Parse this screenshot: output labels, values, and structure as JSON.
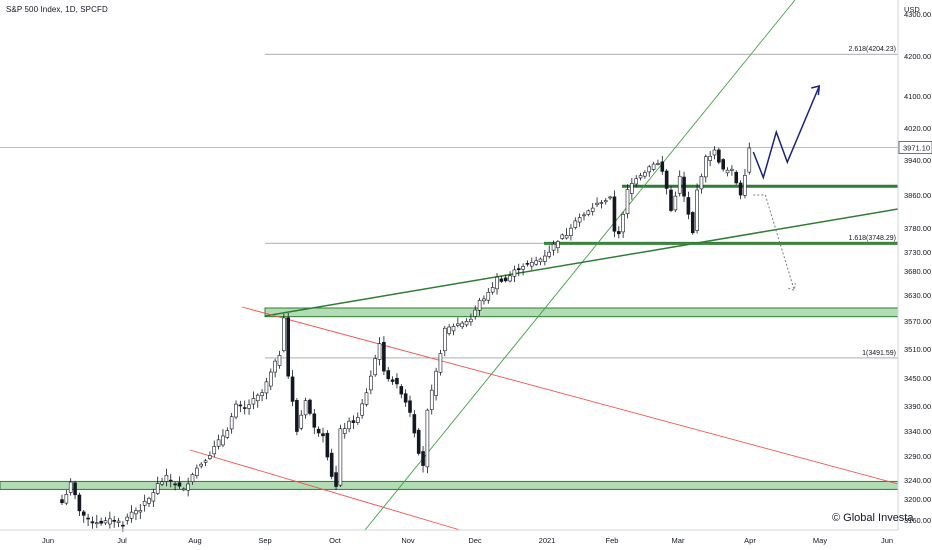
{
  "header": {
    "title": "S&P 500 Index, 1D, SPCFD",
    "currency": "USD"
  },
  "watermark": "© Global Investa",
  "chart_data": {
    "type": "candlestick",
    "y_ticks": [
      4300.0,
      4200.0,
      4100.0,
      4020.0,
      3940.0,
      3860.0,
      3780.0,
      3730.0,
      3680.0,
      3630.0,
      3570.0,
      3510.0,
      3450.0,
      3390.0,
      3340.0,
      3290.0,
      3240.0,
      3200.0,
      3160.0
    ],
    "y_tick_labels": [
      "4300.00",
      "4200.00",
      "4100.00",
      "4020.00",
      "3940.00",
      "3860.00",
      "3780.00",
      "3730.00",
      "3680.00",
      "3630.00",
      "3570.00",
      "3510.00",
      "3450.00",
      "3390.00",
      "3340.00",
      "3290.00",
      "3240.00",
      "3200.00",
      "3160.00"
    ],
    "x_labels": [
      "Jun",
      "Jul",
      "Aug",
      "Sep",
      "Oct",
      "Nov",
      "Dec",
      "2021",
      "Feb",
      "Mar",
      "Apr",
      "May",
      "Jun"
    ],
    "last_price": "3971.10",
    "fib_levels": [
      {
        "label": "2.618(4204.23)",
        "value": 4204.23
      },
      {
        "label": "1.618(3748.29)",
        "value": 3748.29
      },
      {
        "label": "1(3491.59)",
        "value": 3491.59
      }
    ],
    "support_zones": [
      {
        "from": 3580,
        "to": 3600
      },
      {
        "from": 3222,
        "to": 3237
      }
    ],
    "support_lines": [
      3880,
      3748
    ],
    "ohlc_anchors": [
      [
        0,
        3193
      ],
      [
        2,
        3232
      ],
      [
        4,
        3180
      ],
      [
        6,
        3158
      ],
      [
        10,
        3156
      ],
      [
        12,
        3160
      ],
      [
        14,
        3153
      ],
      [
        16,
        3175
      ],
      [
        18,
        3182
      ],
      [
        20,
        3200
      ],
      [
        22,
        3230
      ],
      [
        24,
        3245
      ],
      [
        26,
        3232
      ],
      [
        28,
        3218
      ],
      [
        30,
        3255
      ],
      [
        32,
        3275
      ],
      [
        34,
        3295
      ],
      [
        36,
        3318
      ],
      [
        38,
        3345
      ],
      [
        40,
        3390
      ],
      [
        42,
        3385
      ],
      [
        44,
        3402
      ],
      [
        46,
        3418
      ],
      [
        48,
        3460
      ],
      [
        50,
        3500
      ],
      [
        51,
        3582
      ],
      [
        52,
        3455
      ],
      [
        54,
        3340
      ],
      [
        56,
        3405
      ],
      [
        58,
        3345
      ],
      [
        60,
        3335
      ],
      [
        62,
        3250
      ],
      [
        63,
        3225
      ],
      [
        64,
        3340
      ],
      [
        66,
        3355
      ],
      [
        68,
        3365
      ],
      [
        70,
        3420
      ],
      [
        72,
        3490
      ],
      [
        73,
        3525
      ],
      [
        74,
        3460
      ],
      [
        76,
        3445
      ],
      [
        78,
        3420
      ],
      [
        80,
        3380
      ],
      [
        82,
        3300
      ],
      [
        83,
        3272
      ],
      [
        84,
        3378
      ],
      [
        86,
        3460
      ],
      [
        87,
        3505
      ],
      [
        88,
        3550
      ],
      [
        90,
        3560
      ],
      [
        92,
        3567
      ],
      [
        94,
        3575
      ],
      [
        96,
        3615
      ],
      [
        98,
        3632
      ],
      [
        100,
        3665
      ],
      [
        102,
        3660
      ],
      [
        104,
        3680
      ],
      [
        106,
        3695
      ],
      [
        108,
        3700
      ],
      [
        110,
        3712
      ],
      [
        112,
        3732
      ],
      [
        114,
        3756
      ],
      [
        116,
        3768
      ],
      [
        118,
        3801
      ],
      [
        120,
        3810
      ],
      [
        122,
        3830
      ],
      [
        124,
        3845
      ],
      [
        126,
        3851
      ],
      [
        127,
        3775
      ],
      [
        128,
        3771
      ],
      [
        129,
        3810
      ],
      [
        130,
        3870
      ],
      [
        132,
        3901
      ],
      [
        134,
        3915
      ],
      [
        136,
        3934
      ],
      [
        137,
        3931
      ],
      [
        138,
        3913
      ],
      [
        139,
        3875
      ],
      [
        140,
        3822
      ],
      [
        142,
        3900
      ],
      [
        144,
        3811
      ],
      [
        145,
        3768
      ],
      [
        146,
        3870
      ],
      [
        148,
        3944
      ],
      [
        150,
        3962
      ],
      [
        152,
        3916
      ],
      [
        154,
        3915
      ],
      [
        156,
        3863
      ],
      [
        157,
        3910
      ],
      [
        158,
        3971
      ]
    ],
    "projection_up": [
      [
        3960,
        0
      ],
      [
        3900,
        0
      ],
      [
        4010,
        0
      ],
      [
        3935,
        0
      ],
      [
        4125,
        0
      ]
    ],
    "projection_down": [
      3860,
      3640
    ],
    "trendlines": [
      {
        "name": "rising-support-steep",
        "color": "#43a047"
      },
      {
        "name": "rising-support-shallow",
        "color": "#2e7d32"
      },
      {
        "name": "falling-channel-top",
        "color": "#ef5350"
      },
      {
        "name": "falling-channel-bottom",
        "color": "#ef5350"
      }
    ],
    "colors": {
      "zone": "#a5d6a7",
      "zone_border": "#2e7d32",
      "line_green": "#2e7d32",
      "projection": "#1a237e",
      "candle": "#131722"
    }
  }
}
